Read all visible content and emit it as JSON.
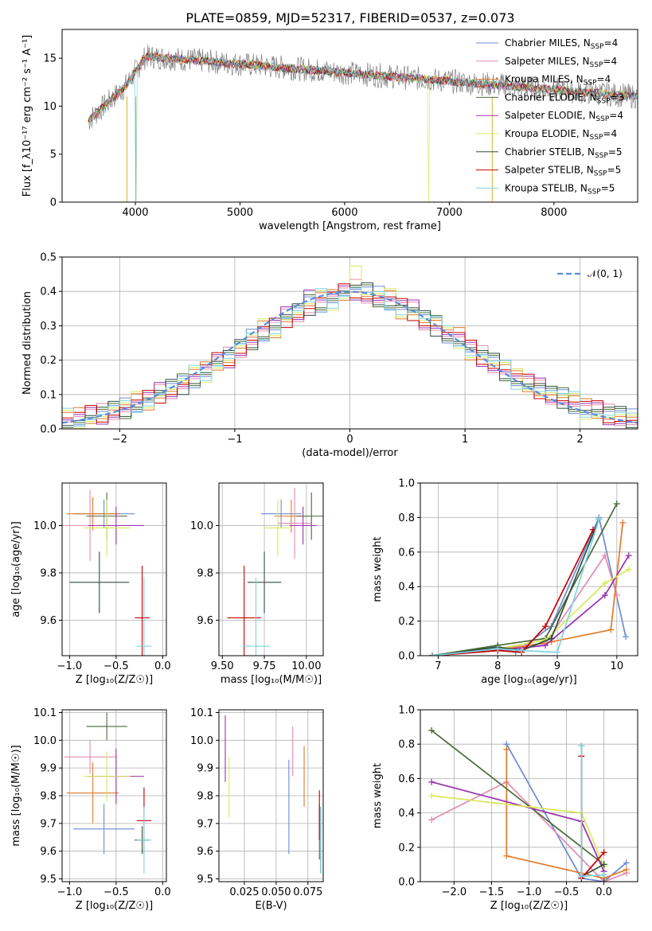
{
  "title": "PLATE=0859, MJD=52317, FIBERID=0537, z=0.073",
  "colors": [
    "#6b8bd6",
    "#e58bb3",
    "#e07b2a",
    "#4a6b3a",
    "#9b2fae",
    "#d9e85a",
    "#2f4f3f",
    "#c40000",
    "#7fd3e0"
  ],
  "spectrum": {
    "xlabel": "wavelength [Angstrom, rest frame]",
    "ylabel": "Flux [f_λ10⁻¹⁷ erg cm⁻² s⁻¹ A⁻¹]",
    "xlim": [
      3300,
      8800
    ],
    "ylim": [
      0,
      18
    ],
    "xticks": [
      4000,
      5000,
      6000,
      7000,
      8000
    ],
    "yticks": [
      0,
      5,
      10,
      15
    ],
    "data_color": "#808080",
    "legend": [
      {
        "name": "Chabrier MILES, N",
        "sub": "SSP",
        "val": "=4"
      },
      {
        "name": "Salpeter MILES, N",
        "sub": "SSP",
        "val": "=4"
      },
      {
        "name": "Kroupa MILES, N",
        "sub": "SSP",
        "val": "=4"
      },
      {
        "name": "Chabrier ELODIE, N",
        "sub": "SSP",
        "val": "=3"
      },
      {
        "name": "Salpeter ELODIE, N",
        "sub": "SSP",
        "val": "=4"
      },
      {
        "name": "Kroupa ELODIE, N",
        "sub": "SSP",
        "val": "=4"
      },
      {
        "name": "Chabrier STELIB, N",
        "sub": "SSP",
        "val": "=5"
      },
      {
        "name": "Salpeter STELIB, N",
        "sub": "SSP",
        "val": "=5"
      },
      {
        "name": "Kroupa STELIB, N",
        "sub": "SSP",
        "val": "=5"
      }
    ]
  },
  "residuals": {
    "xlabel": "(data-model)/error",
    "ylabel": "Normed distribution",
    "xlim": [
      -2.5,
      2.5
    ],
    "ylim": [
      0,
      0.5
    ],
    "xticks": [
      -2,
      -1,
      0,
      1,
      2
    ],
    "xticklabels": [
      "−2",
      "−1",
      "0",
      "1",
      "2"
    ],
    "yticks": [
      0,
      0.1,
      0.2,
      0.3,
      0.4,
      0.5
    ],
    "yticklabels": [
      "0.0",
      "0.1",
      "0.2",
      "0.3",
      "0.4",
      "0.5"
    ],
    "legend_label": "𝒩(0, 1)",
    "legend_color": "#5a8dd6"
  },
  "panels": {
    "p1": {
      "xlabel": "Z [log₁₀(Z/Z☉)]",
      "ylabel": "age  [log₁₀(age/yr)]",
      "xlim": [
        -1.08,
        0.04
      ],
      "ylim": [
        9.45,
        10.18
      ],
      "xticks": [
        -1.0,
        -0.5,
        0.0
      ],
      "xticklabels": [
        "−1.0",
        "−0.5",
        "0.0"
      ],
      "yticks": [
        9.6,
        9.8,
        10.0
      ],
      "yticklabels": [
        "9.6",
        "9.8",
        "10.0"
      ]
    },
    "p2": {
      "xlabel": "mass [log₁₀(M/M☉)]",
      "ylabel": "",
      "xlim": [
        9.48,
        10.1
      ],
      "ylim": [
        9.45,
        10.18
      ],
      "xticks": [
        9.5,
        9.75,
        10.0
      ],
      "xticklabels": [
        "9.50",
        "9.75",
        "10.00"
      ],
      "yticks": [
        9.6,
        9.8,
        10.0
      ],
      "yticklabels": [
        "9.6",
        "9.8",
        "10.0"
      ]
    },
    "p3": {
      "xlabel": "age  [log₁₀(age/yr)]",
      "ylabel": "mass weight",
      "xlim": [
        6.7,
        10.35
      ],
      "ylim": [
        0,
        1.0
      ],
      "xticks": [
        7,
        8,
        9,
        10
      ],
      "xticklabels": [
        "7",
        "8",
        "9",
        "10"
      ],
      "yticks": [
        0,
        0.2,
        0.4,
        0.6,
        0.8,
        1.0
      ],
      "yticklabels": [
        "0.0",
        "0.2",
        "0.4",
        "0.6",
        "0.8",
        "1.0"
      ]
    },
    "p4": {
      "xlabel": "Z [log₁₀(Z/Z☉)]",
      "ylabel": "mass [log₁₀(M/M☉)]",
      "xlim": [
        -1.08,
        0.04
      ],
      "ylim": [
        9.49,
        10.11
      ],
      "xticks": [
        -1.0,
        -0.5,
        0.0
      ],
      "xticklabels": [
        "−1.0",
        "−0.5",
        "0.0"
      ],
      "yticks": [
        9.5,
        9.6,
        9.7,
        9.8,
        9.9,
        10.0,
        10.1
      ],
      "yticklabels": [
        "9.5",
        "9.6",
        "9.7",
        "9.8",
        "9.9",
        "10.0",
        "10.1"
      ]
    },
    "p5": {
      "xlabel": "E(B-V)",
      "ylabel": "",
      "xlim": [
        0.005,
        0.087
      ],
      "ylim": [
        9.49,
        10.11
      ],
      "xticks": [
        0.025,
        0.05,
        0.075
      ],
      "xticklabels": [
        "0.025",
        "0.050",
        "0.075"
      ],
      "yticks": [
        9.5,
        9.6,
        9.7,
        9.8,
        9.9,
        10.0,
        10.1
      ],
      "yticklabels": [
        "9.5",
        "9.6",
        "9.7",
        "9.8",
        "9.9",
        "10.0",
        "10.1"
      ]
    },
    "p6": {
      "xlabel": "Z [log₁₀(Z/Z☉)]",
      "ylabel": "mass weight",
      "xlim": [
        -2.45,
        0.45
      ],
      "ylim": [
        0,
        1.0
      ],
      "xticks": [
        -2.0,
        -1.5,
        -1.0,
        -0.5,
        0.0
      ],
      "xticklabels": [
        "−2.0",
        "−1.5",
        "−1.0",
        "−0.5",
        "0.0"
      ],
      "yticks": [
        0,
        0.2,
        0.4,
        0.6,
        0.8,
        1.0
      ],
      "yticklabels": [
        "0.0",
        "0.2",
        "0.4",
        "0.6",
        "0.8",
        "1.0"
      ]
    }
  },
  "chart_data": [
    {
      "type": "line",
      "title": "PLATE=0859, MJD=52317, FIBERID=0537, z=0.073",
      "xlabel": "wavelength [Angstrom, rest frame]",
      "ylabel": "Flux [f_λ10⁻¹⁷ erg cm⁻² s⁻¹ A⁻¹]",
      "xlim": [
        3300,
        8800
      ],
      "ylim": [
        0,
        18
      ],
      "x": [
        3550,
        3700,
        3850,
        4000,
        4200,
        4400,
        4600,
        4800,
        5000,
        5200,
        5400,
        5600,
        5800,
        6000,
        6200,
        6400,
        6600,
        6800,
        7000,
        7200,
        7400,
        7600,
        7800,
        8000,
        8200,
        8400,
        8700
      ],
      "series": [
        {
          "name": "data",
          "values": [
            9.5,
            10.5,
            12.5,
            15.0,
            15.2,
            14.8,
            14.5,
            14.2,
            14.0,
            13.8,
            13.6,
            13.5,
            13.4,
            13.3,
            13.2,
            13.1,
            13.0,
            12.8,
            12.6,
            12.5,
            12.3,
            12.2,
            12.0,
            11.8,
            11.7,
            11.5,
            11.2
          ]
        },
        {
          "name": "model",
          "values": [
            9.8,
            10.8,
            12.8,
            15.5,
            15.3,
            14.9,
            14.6,
            14.3,
            14.1,
            13.9,
            13.7,
            13.6,
            13.5,
            13.4,
            13.3,
            13.1,
            13.0,
            12.9,
            12.7,
            12.5,
            12.4,
            12.3,
            12.1,
            11.9,
            11.7,
            11.6,
            11.3
          ]
        }
      ],
      "legend_placement": "upper right",
      "grid": false
    },
    {
      "type": "line",
      "xlabel": "(data-model)/error",
      "ylabel": "Normed distribution",
      "xlim": [
        -2.5,
        2.5
      ],
      "ylim": [
        0,
        0.5
      ],
      "bin_width": 0.1,
      "bin_start": -2.5,
      "legend_entry": "𝒩(0, 1)",
      "histograms": [
        [
          0.028,
          0.03,
          0.033,
          0.045,
          0.05,
          0.06,
          0.075,
          0.09,
          0.1,
          0.12,
          0.13,
          0.15,
          0.17,
          0.19,
          0.21,
          0.23,
          0.26,
          0.28,
          0.3,
          0.32,
          0.34,
          0.36,
          0.37,
          0.385,
          0.395,
          0.4,
          0.395,
          0.385,
          0.37,
          0.36,
          0.34,
          0.32,
          0.3,
          0.28,
          0.26,
          0.23,
          0.21,
          0.19,
          0.17,
          0.15,
          0.13,
          0.12,
          0.1,
          0.09,
          0.075,
          0.06,
          0.05,
          0.045,
          0.035,
          0.028
        ],
        [
          0.026,
          0.03,
          0.038,
          0.044,
          0.052,
          0.062,
          0.072,
          0.088,
          0.105,
          0.118,
          0.135,
          0.152,
          0.168,
          0.192,
          0.208,
          0.232,
          0.258,
          0.285,
          0.298,
          0.325,
          0.342,
          0.356,
          0.375,
          0.38,
          0.392,
          0.405,
          0.39,
          0.38,
          0.372,
          0.355,
          0.345,
          0.318,
          0.305,
          0.275,
          0.262,
          0.228,
          0.212,
          0.188,
          0.172,
          0.148,
          0.135,
          0.118,
          0.102,
          0.088,
          0.072,
          0.062,
          0.052,
          0.042,
          0.034,
          0.025
        ],
        [
          0.03,
          0.032,
          0.04,
          0.042,
          0.055,
          0.058,
          0.078,
          0.085,
          0.108,
          0.115,
          0.128,
          0.155,
          0.165,
          0.195,
          0.205,
          0.235,
          0.255,
          0.29,
          0.295,
          0.33,
          0.338,
          0.352,
          0.378,
          0.375,
          0.398,
          0.41,
          0.385,
          0.375,
          0.378,
          0.35,
          0.35,
          0.315,
          0.31,
          0.27,
          0.265,
          0.225,
          0.215,
          0.185,
          0.175,
          0.145,
          0.138,
          0.115,
          0.105,
          0.085,
          0.078,
          0.058,
          0.055,
          0.04,
          0.036,
          0.022
        ]
      ]
    },
    {
      "type": "scatter",
      "xlabel": "Z [log₁₀(Z/Z☉)]",
      "ylabel": "age  [log₁₀(age/yr)]",
      "points": [
        {
          "x": -0.63,
          "y": 10.05,
          "xerr": 0.33,
          "yerr": 0.06
        },
        {
          "x": -0.78,
          "y": 10.0,
          "xerr": 0.28,
          "yerr": 0.15
        },
        {
          "x": -0.75,
          "y": 10.05,
          "xerr": 0.28,
          "yerr": 0.07
        },
        {
          "x": -0.6,
          "y": 10.04,
          "xerr": 0.22,
          "yerr": 0.1
        },
        {
          "x": -0.5,
          "y": 10.0,
          "xerr": 0.3,
          "yerr": 0.08
        },
        {
          "x": -0.6,
          "y": 9.99,
          "xerr": 0.25,
          "yerr": 0.12
        },
        {
          "x": -0.68,
          "y": 9.76,
          "xerr": 0.32,
          "yerr": 0.13
        },
        {
          "x": -0.22,
          "y": 9.61,
          "xerr": 0.08,
          "yerr": 0.22
        },
        {
          "x": -0.2,
          "y": 9.49,
          "xerr": 0.08,
          "yerr": 0.29
        }
      ]
    },
    {
      "type": "scatter",
      "xlabel": "mass [log₁₀(M/M☉)]",
      "ylabel": "",
      "points": [
        {
          "x": 9.85,
          "y": 10.05,
          "xerr": 0.12,
          "yerr": 0.06
        },
        {
          "x": 9.93,
          "y": 10.01,
          "xerr": 0.1,
          "yerr": 0.15
        },
        {
          "x": 9.91,
          "y": 10.04,
          "xerr": 0.1,
          "yerr": 0.07
        },
        {
          "x": 10.03,
          "y": 10.04,
          "xerr": 0.09,
          "yerr": 0.1
        },
        {
          "x": 9.98,
          "y": 10.0,
          "xerr": 0.08,
          "yerr": 0.08
        },
        {
          "x": 9.83,
          "y": 9.99,
          "xerr": 0.08,
          "yerr": 0.12
        },
        {
          "x": 9.75,
          "y": 9.76,
          "xerr": 0.1,
          "yerr": 0.13
        },
        {
          "x": 9.63,
          "y": 9.61,
          "xerr": 0.1,
          "yerr": 0.22
        },
        {
          "x": 9.7,
          "y": 9.49,
          "xerr": 0.08,
          "yerr": 0.29
        }
      ]
    },
    {
      "type": "line",
      "xlabel": "age  [log₁₀(age/yr)]",
      "ylabel": "mass weight",
      "series": [
        {
          "name": "",
          "x": [
            6.9,
            8.0,
            8.3,
            8.9,
            9.7,
            10.15
          ],
          "values": [
            0.0,
            0.05,
            0.02,
            0.17,
            0.8,
            0.11
          ]
        },
        {
          "name": "",
          "x": [
            6.9,
            8.0,
            8.8,
            9.8,
            10.0
          ],
          "values": [
            0.0,
            0.04,
            0.07,
            0.58,
            0.35
          ]
        },
        {
          "name": "",
          "x": [
            6.9,
            8.0,
            8.9,
            9.9,
            10.1
          ],
          "values": [
            0.0,
            0.03,
            0.08,
            0.15,
            0.77
          ]
        },
        {
          "name": "",
          "x": [
            6.9,
            8.0,
            8.8,
            10.0
          ],
          "values": [
            0.0,
            0.06,
            0.1,
            0.88
          ]
        },
        {
          "name": "",
          "x": [
            6.9,
            8.0,
            8.8,
            9.8,
            10.2
          ],
          "values": [
            0.0,
            0.03,
            0.06,
            0.35,
            0.58
          ]
        },
        {
          "name": "",
          "x": [
            6.9,
            8.0,
            8.8,
            9.8,
            10.2
          ],
          "values": [
            0.0,
            0.04,
            0.09,
            0.42,
            0.5
          ]
        },
        {
          "name": "",
          "x": [
            6.9,
            8.0,
            8.4,
            8.9,
            9.7
          ],
          "values": [
            0.0,
            0.05,
            0.03,
            0.1,
            0.79
          ]
        },
        {
          "name": "",
          "x": [
            6.9,
            8.0,
            8.4,
            8.8,
            9.6
          ],
          "values": [
            0.0,
            0.03,
            0.02,
            0.17,
            0.73
          ]
        },
        {
          "name": "",
          "x": [
            6.9,
            8.0,
            8.4,
            9.0,
            9.7
          ],
          "values": [
            0.0,
            0.04,
            0.03,
            0.02,
            0.79
          ]
        }
      ]
    },
    {
      "type": "scatter",
      "xlabel": "Z [log₁₀(Z/Z☉)]",
      "ylabel": "mass [log₁₀(M/M☉)]",
      "points": [
        {
          "x": -0.63,
          "y": 9.68,
          "xerr": 0.33,
          "yerr": 0.09
        },
        {
          "x": -0.78,
          "y": 9.94,
          "xerr": 0.28,
          "yerr": 0.06
        },
        {
          "x": -0.75,
          "y": 9.81,
          "xerr": 0.28,
          "yerr": 0.11
        },
        {
          "x": -0.6,
          "y": 10.05,
          "xerr": 0.22,
          "yerr": 0.05
        },
        {
          "x": -0.5,
          "y": 9.87,
          "xerr": 0.3,
          "yerr": 0.1
        },
        {
          "x": -0.6,
          "y": 9.87,
          "xerr": 0.25,
          "yerr": 0.09
        },
        {
          "x": -0.22,
          "y": 9.64,
          "xerr": 0.08,
          "yerr": 0.05
        },
        {
          "x": -0.2,
          "y": 9.71,
          "xerr": 0.08,
          "yerr": 0.12
        },
        {
          "x": -0.2,
          "y": 9.64,
          "xerr": 0.08,
          "yerr": 0.12
        }
      ]
    },
    {
      "type": "scatter",
      "xlabel": "E(B-V)",
      "ylabel": "",
      "points": [
        {
          "x": 0.06,
          "y": 9.76,
          "yerr": 0.17
        },
        {
          "x": 0.063,
          "y": 9.96,
          "yerr": 0.09
        },
        {
          "x": 0.072,
          "y": 9.87,
          "yerr": 0.11
        },
        {
          "x": 0.084,
          "y": 9.67,
          "yerr": 0.1
        },
        {
          "x": 0.01,
          "y": 9.97,
          "yerr": 0.12
        },
        {
          "x": 0.013,
          "y": 9.83,
          "yerr": 0.11
        },
        {
          "x": 0.085,
          "y": 9.64,
          "yerr": 0.12
        },
        {
          "x": 0.084,
          "y": 9.73,
          "yerr": 0.09
        },
        {
          "x": 0.085,
          "y": 9.64,
          "yerr": 0.12
        }
      ]
    },
    {
      "type": "line",
      "xlabel": "Z [log₁₀(Z/Z☉)]",
      "ylabel": "mass weight",
      "series": [
        {
          "name": "",
          "x": [
            -1.3,
            -0.3,
            0.0,
            0.3
          ],
          "values": [
            0.8,
            0.02,
            0.0,
            0.11
          ]
        },
        {
          "name": "",
          "x": [
            -2.3,
            -1.3,
            0.0,
            0.3
          ],
          "values": [
            0.36,
            0.58,
            0.0,
            0.05
          ]
        },
        {
          "name": "",
          "x": [
            -1.3,
            -1.3,
            0.0,
            0.3
          ],
          "values": [
            0.77,
            0.15,
            0.02,
            0.07
          ]
        },
        {
          "name": "",
          "x": [
            -2.3,
            0.0,
            0.0
          ],
          "values": [
            0.88,
            0.1,
            0.0
          ]
        },
        {
          "name": "",
          "x": [
            -2.3,
            -0.3,
            0.0
          ],
          "values": [
            0.58,
            0.35,
            0.06
          ]
        },
        {
          "name": "",
          "x": [
            -2.3,
            -0.3,
            0.0
          ],
          "values": [
            0.5,
            0.4,
            0.09
          ]
        },
        {
          "name": "",
          "x": [
            -0.3,
            -0.3,
            0.0
          ],
          "values": [
            0.79,
            0.03,
            0.1
          ]
        },
        {
          "name": "",
          "x": [
            -0.3,
            -0.3,
            0.0
          ],
          "values": [
            0.73,
            0.02,
            0.17
          ]
        },
        {
          "name": "",
          "x": [
            -0.3,
            -0.3,
            0.0
          ],
          "values": [
            0.79,
            0.03,
            0.04
          ]
        }
      ]
    }
  ]
}
